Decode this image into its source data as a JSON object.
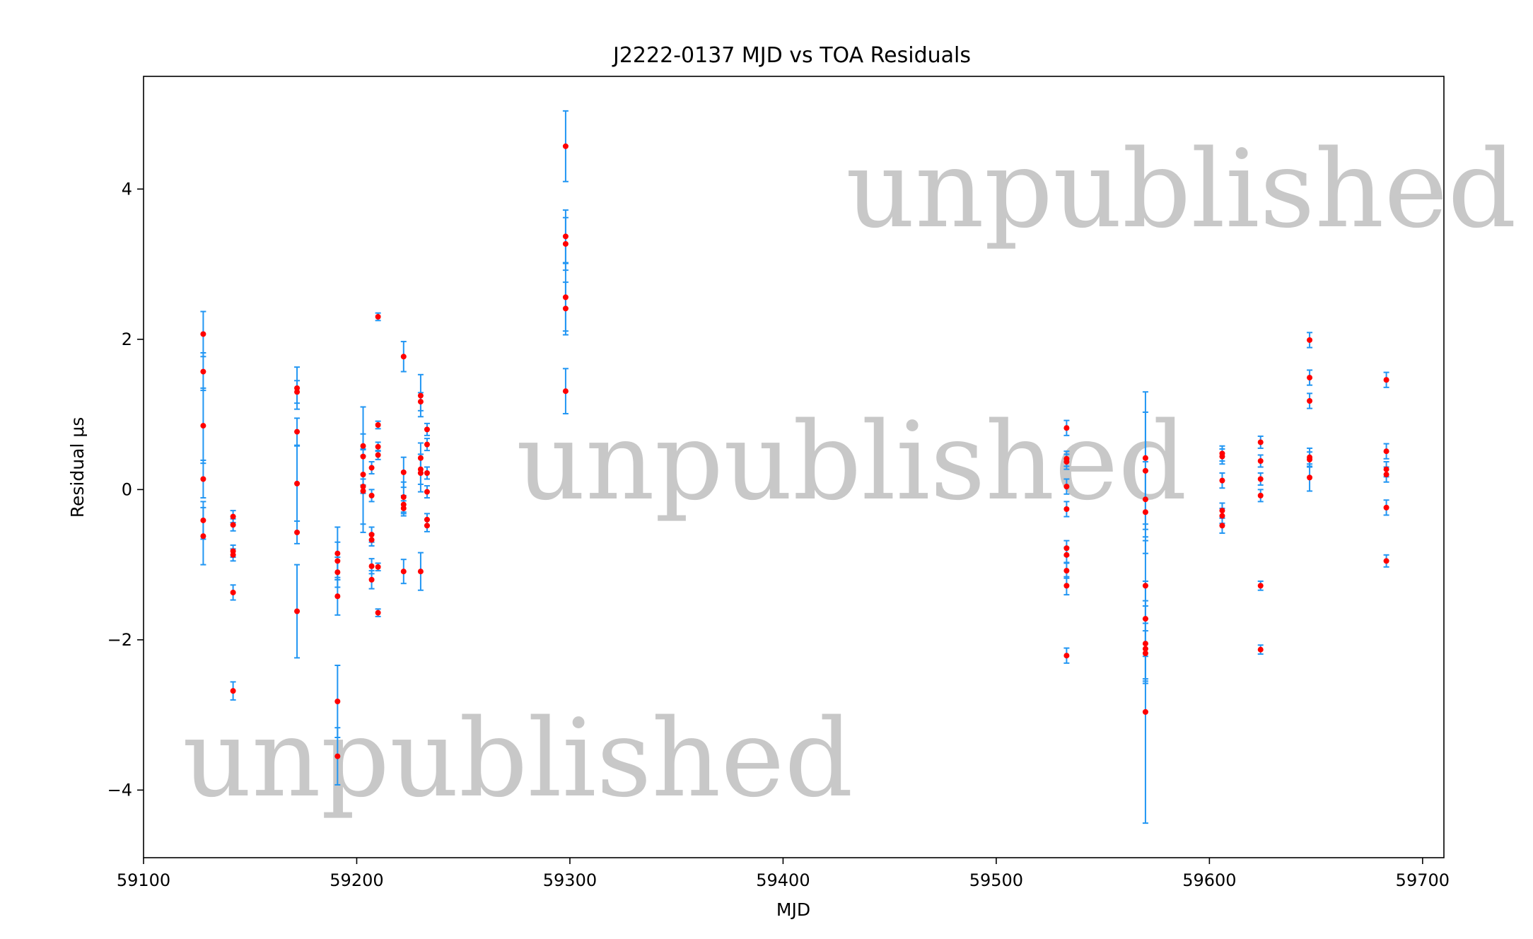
{
  "chart_data": {
    "type": "scatter",
    "title": "J2222-0137 MJD vs TOA Residuals",
    "xlabel": "MJD",
    "ylabel": "Residual μs",
    "xlim": [
      59100,
      59710
    ],
    "ylim": [
      -4.9,
      5.5
    ],
    "xticks": [
      59100,
      59200,
      59300,
      59400,
      59500,
      59600,
      59700
    ],
    "yticks": [
      -4,
      -2,
      0,
      2,
      4
    ],
    "grid": false,
    "colors": {
      "marker": "#ff0000",
      "errorbar": "#2196f3",
      "watermark": "#c8c8c8"
    },
    "watermark": "unpublished",
    "series": [
      {
        "points": [
          {
            "x": 59128,
            "y": 2.07,
            "err": 0.3
          },
          {
            "x": 59128,
            "y": 1.57,
            "err": 0.25
          },
          {
            "x": 59128,
            "y": 0.85,
            "err": 0.5
          },
          {
            "x": 59128,
            "y": 0.14,
            "err": 0.25
          },
          {
            "x": 59128,
            "y": -0.41,
            "err": 0.25
          },
          {
            "x": 59128,
            "y": -0.62,
            "err": 0.38
          },
          {
            "x": 59142,
            "y": -0.36,
            "err": 0.08
          },
          {
            "x": 59142,
            "y": -0.47,
            "err": 0.08
          },
          {
            "x": 59142,
            "y": -0.82,
            "err": 0.08
          },
          {
            "x": 59142,
            "y": -0.87,
            "err": 0.08
          },
          {
            "x": 59142,
            "y": -1.37,
            "err": 0.1
          },
          {
            "x": 59142,
            "y": -2.68,
            "err": 0.12
          },
          {
            "x": 59172,
            "y": 1.35,
            "err": 0.28
          },
          {
            "x": 59172,
            "y": 1.3,
            "err": 0.15
          },
          {
            "x": 59172,
            "y": 0.77,
            "err": 0.18
          },
          {
            "x": 59172,
            "y": 0.08,
            "err": 0.5
          },
          {
            "x": 59172,
            "y": -0.57,
            "err": 0.15
          },
          {
            "x": 59172,
            "y": -1.62,
            "err": 0.62
          },
          {
            "x": 59191,
            "y": -0.85,
            "err": 0.35
          },
          {
            "x": 59191,
            "y": -0.95,
            "err": 0.25
          },
          {
            "x": 59191,
            "y": -1.1,
            "err": 0.2
          },
          {
            "x": 59191,
            "y": -1.42,
            "err": 0.25
          },
          {
            "x": 59191,
            "y": -2.82,
            "err": 0.48
          },
          {
            "x": 59191,
            "y": -3.55,
            "err": 0.38
          },
          {
            "x": 59203,
            "y": 0.58,
            "err": 0.52
          },
          {
            "x": 59203,
            "y": 0.44,
            "err": 0.3
          },
          {
            "x": 59203,
            "y": 0.2,
            "err": 0.25
          },
          {
            "x": 59203,
            "y": 0.04,
            "err": 0.5
          },
          {
            "x": 59203,
            "y": -0.02,
            "err": 0.55
          },
          {
            "x": 59207,
            "y": 0.29,
            "err": 0.08
          },
          {
            "x": 59207,
            "y": -0.08,
            "err": 0.08
          },
          {
            "x": 59207,
            "y": -0.6,
            "err": 0.1
          },
          {
            "x": 59207,
            "y": -0.67,
            "err": 0.08
          },
          {
            "x": 59207,
            "y": -1.02,
            "err": 0.1
          },
          {
            "x": 59207,
            "y": -1.2,
            "err": 0.12
          },
          {
            "x": 59210,
            "y": 2.3,
            "err": 0.05
          },
          {
            "x": 59210,
            "y": 0.86,
            "err": 0.05
          },
          {
            "x": 59210,
            "y": 0.57,
            "err": 0.06
          },
          {
            "x": 59210,
            "y": 0.46,
            "err": 0.06
          },
          {
            "x": 59210,
            "y": -1.03,
            "err": 0.05
          },
          {
            "x": 59210,
            "y": -1.64,
            "err": 0.05
          },
          {
            "x": 59222,
            "y": 1.77,
            "err": 0.2
          },
          {
            "x": 59222,
            "y": 0.23,
            "err": 0.2
          },
          {
            "x": 59222,
            "y": -0.1,
            "err": 0.2
          },
          {
            "x": 59222,
            "y": -0.2,
            "err": 0.12
          },
          {
            "x": 59222,
            "y": -0.25,
            "err": 0.1
          },
          {
            "x": 59222,
            "y": -1.09,
            "err": 0.16
          },
          {
            "x": 59230,
            "y": 1.25,
            "err": 0.28
          },
          {
            "x": 59230,
            "y": 1.17,
            "err": 0.12
          },
          {
            "x": 59230,
            "y": 0.42,
            "err": 0.2
          },
          {
            "x": 59230,
            "y": 0.27,
            "err": 0.2
          },
          {
            "x": 59230,
            "y": 0.22,
            "err": 0.25
          },
          {
            "x": 59230,
            "y": -1.09,
            "err": 0.25
          },
          {
            "x": 59233,
            "y": 0.8,
            "err": 0.08
          },
          {
            "x": 59233,
            "y": 0.6,
            "err": 0.08
          },
          {
            "x": 59233,
            "y": 0.22,
            "err": 0.08
          },
          {
            "x": 59233,
            "y": -0.03,
            "err": 0.08
          },
          {
            "x": 59233,
            "y": -0.4,
            "err": 0.08
          },
          {
            "x": 59233,
            "y": -0.48,
            "err": 0.08
          },
          {
            "x": 59298,
            "y": 4.57,
            "err": 0.47
          },
          {
            "x": 59298,
            "y": 3.37,
            "err": 0.35
          },
          {
            "x": 59298,
            "y": 3.27,
            "err": 0.35
          },
          {
            "x": 59298,
            "y": 2.56,
            "err": 0.45
          },
          {
            "x": 59298,
            "y": 2.41,
            "err": 0.35
          },
          {
            "x": 59298,
            "y": 1.31,
            "err": 0.3
          },
          {
            "x": 59533,
            "y": 0.82,
            "err": 0.1
          },
          {
            "x": 59533,
            "y": 0.41,
            "err": 0.1
          },
          {
            "x": 59533,
            "y": 0.37,
            "err": 0.1
          },
          {
            "x": 59533,
            "y": 0.04,
            "err": 0.1
          },
          {
            "x": 59533,
            "y": -0.26,
            "err": 0.1
          },
          {
            "x": 59533,
            "y": -0.78,
            "err": 0.1
          },
          {
            "x": 59533,
            "y": -0.87,
            "err": 0.1
          },
          {
            "x": 59533,
            "y": -1.08,
            "err": 0.1
          },
          {
            "x": 59533,
            "y": -1.28,
            "err": 0.12
          },
          {
            "x": 59533,
            "y": -2.21,
            "err": 0.1
          },
          {
            "x": 59570,
            "y": 0.42,
            "err": 0.88
          },
          {
            "x": 59570,
            "y": 0.25,
            "err": 0.78
          },
          {
            "x": 59570,
            "y": -0.13,
            "err": 0.5
          },
          {
            "x": 59570,
            "y": -0.3,
            "err": 0.55
          },
          {
            "x": 59570,
            "y": -1.28,
            "err": 0.6
          },
          {
            "x": 59570,
            "y": -1.72,
            "err": 0.5
          },
          {
            "x": 59570,
            "y": -2.05,
            "err": 0.5
          },
          {
            "x": 59570,
            "y": -2.12,
            "err": 0.4
          },
          {
            "x": 59570,
            "y": -2.18,
            "err": 0.4
          },
          {
            "x": 59570,
            "y": -2.96,
            "err": 1.48
          },
          {
            "x": 59606,
            "y": 0.48,
            "err": 0.1
          },
          {
            "x": 59606,
            "y": 0.44,
            "err": 0.1
          },
          {
            "x": 59606,
            "y": 0.12,
            "err": 0.1
          },
          {
            "x": 59606,
            "y": -0.28,
            "err": 0.1
          },
          {
            "x": 59606,
            "y": -0.35,
            "err": 0.1
          },
          {
            "x": 59606,
            "y": -0.48,
            "err": 0.1
          },
          {
            "x": 59624,
            "y": 0.63,
            "err": 0.08
          },
          {
            "x": 59624,
            "y": 0.38,
            "err": 0.08
          },
          {
            "x": 59624,
            "y": 0.14,
            "err": 0.08
          },
          {
            "x": 59624,
            "y": -0.08,
            "err": 0.08
          },
          {
            "x": 59624,
            "y": -1.28,
            "err": 0.06
          },
          {
            "x": 59624,
            "y": -2.13,
            "err": 0.06
          },
          {
            "x": 59647,
            "y": 1.99,
            "err": 0.1
          },
          {
            "x": 59647,
            "y": 1.49,
            "err": 0.1
          },
          {
            "x": 59647,
            "y": 1.18,
            "err": 0.1
          },
          {
            "x": 59647,
            "y": 0.43,
            "err": 0.12
          },
          {
            "x": 59647,
            "y": 0.4,
            "err": 0.1
          },
          {
            "x": 59647,
            "y": 0.16,
            "err": 0.18
          },
          {
            "x": 59683,
            "y": 1.46,
            "err": 0.1
          },
          {
            "x": 59683,
            "y": 0.51,
            "err": 0.1
          },
          {
            "x": 59683,
            "y": 0.27,
            "err": 0.1
          },
          {
            "x": 59683,
            "y": 0.2,
            "err": 0.1
          },
          {
            "x": 59683,
            "y": -0.24,
            "err": 0.1
          },
          {
            "x": 59683,
            "y": -0.95,
            "err": 0.08
          }
        ]
      }
    ]
  }
}
